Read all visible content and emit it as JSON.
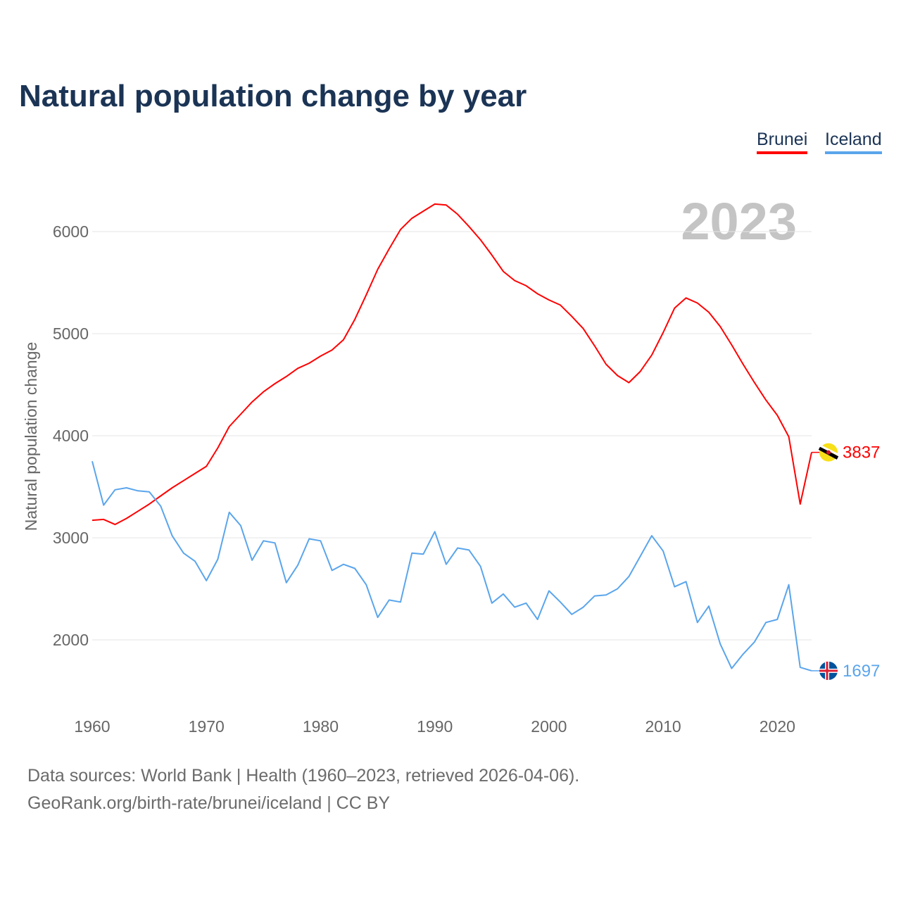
{
  "title": "Natural population change by year",
  "legend": [
    {
      "label": "Brunei",
      "color": "#ff0000"
    },
    {
      "label": "Iceland",
      "color": "#5aa5ec"
    }
  ],
  "footer": {
    "line1": "Data sources: World Bank | Health (1960–2023, retrieved 2026-04-06).",
    "line2": "GeoRank.org/birth-rate/brunei/iceland | CC BY"
  },
  "chart_data": {
    "type": "line",
    "title": "Natural population change by year",
    "xlabel": "",
    "ylabel": "Natural population change",
    "year_watermark": "2023",
    "xlim": [
      1960,
      2023
    ],
    "ylim": [
      1450,
      6400
    ],
    "xticks": [
      1960,
      1970,
      1980,
      1990,
      2000,
      2010,
      2020
    ],
    "yticks": [
      2000,
      3000,
      4000,
      5000,
      6000
    ],
    "grid": true,
    "legend_position": "top-right",
    "x": [
      1960,
      1961,
      1962,
      1963,
      1964,
      1965,
      1966,
      1967,
      1968,
      1969,
      1970,
      1971,
      1972,
      1973,
      1974,
      1975,
      1976,
      1977,
      1978,
      1979,
      1980,
      1981,
      1982,
      1983,
      1984,
      1985,
      1986,
      1987,
      1988,
      1989,
      1990,
      1991,
      1992,
      1993,
      1994,
      1995,
      1996,
      1997,
      1998,
      1999,
      2000,
      2001,
      2002,
      2003,
      2004,
      2005,
      2006,
      2007,
      2008,
      2009,
      2010,
      2011,
      2012,
      2013,
      2014,
      2015,
      2016,
      2017,
      2018,
      2019,
      2020,
      2021,
      2022,
      2023
    ],
    "series": [
      {
        "name": "Brunei",
        "color": "#ff0000",
        "end_label": "3837",
        "flag": "brunei-flag",
        "values": [
          3172,
          3180,
          3130,
          3190,
          3260,
          3330,
          3410,
          3490,
          3560,
          3630,
          3700,
          3880,
          4090,
          4210,
          4330,
          4430,
          4510,
          4580,
          4660,
          4710,
          4780,
          4840,
          4940,
          5140,
          5380,
          5630,
          5830,
          6020,
          6130,
          6200,
          6270,
          6260,
          6170,
          6050,
          5920,
          5770,
          5610,
          5520,
          5470,
          5390,
          5330,
          5280,
          5170,
          5050,
          4880,
          4700,
          4590,
          4520,
          4630,
          4790,
          5010,
          5250,
          5350,
          5300,
          5210,
          5070,
          4890,
          4700,
          4520,
          4350,
          4200,
          3990,
          3330,
          3837
        ]
      },
      {
        "name": "Iceland",
        "color": "#5aa5ec",
        "end_label": "1697",
        "flag": "iceland-flag",
        "values": [
          3750,
          3320,
          3470,
          3490,
          3460,
          3450,
          3310,
          3020,
          2850,
          2770,
          2580,
          2790,
          3250,
          3120,
          2780,
          2970,
          2950,
          2560,
          2730,
          2990,
          2970,
          2680,
          2740,
          2700,
          2540,
          2220,
          2390,
          2370,
          2850,
          2840,
          3060,
          2740,
          2900,
          2880,
          2720,
          2360,
          2450,
          2320,
          2360,
          2200,
          2480,
          2370,
          2250,
          2320,
          2430,
          2440,
          2500,
          2620,
          2820,
          3020,
          2870,
          2520,
          2570,
          2170,
          2330,
          1960,
          1720,
          1860,
          1980,
          2170,
          2200,
          2540,
          1730,
          1697
        ]
      }
    ]
  }
}
